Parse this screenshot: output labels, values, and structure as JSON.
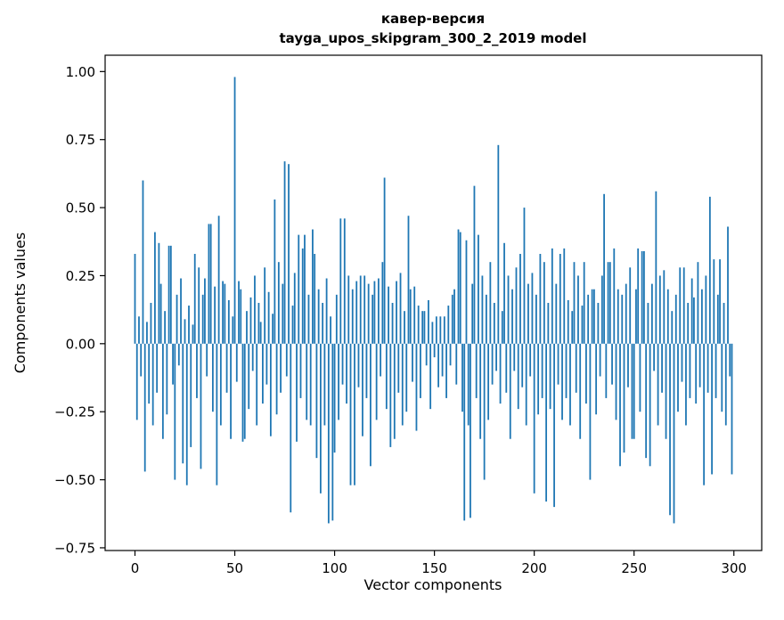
{
  "chart_data": {
    "type": "bar",
    "title_line1": "кавер-версия",
    "title_line2": "tayga_upos_skipgram_300_2_2019 model",
    "xlabel": "Vector components",
    "ylabel": "Components values",
    "bar_color": "#1f77b4",
    "axis_color": "#000000",
    "xlim": [
      -14.95,
      313.95
    ],
    "ylim": [
      -0.76,
      1.06
    ],
    "xticks": [
      0,
      50,
      100,
      150,
      200,
      250,
      300
    ],
    "xtick_labels": [
      "0",
      "50",
      "100",
      "150",
      "200",
      "250",
      "300"
    ],
    "yticks": [
      -0.75,
      -0.5,
      -0.25,
      0,
      0.25,
      0.5,
      0.75,
      1.0
    ],
    "ytick_labels": [
      "−0.75",
      "−0.50",
      "−0.25",
      "0.00",
      "0.25",
      "0.50",
      "0.75",
      "1.00"
    ],
    "legend": "off",
    "grid": "off",
    "values": [
      0.33,
      -0.28,
      0.1,
      -0.12,
      0.6,
      -0.47,
      0.08,
      -0.22,
      0.15,
      -0.3,
      0.41,
      -0.18,
      0.37,
      0.22,
      -0.35,
      0.12,
      -0.26,
      0.36,
      0.36,
      -0.15,
      -0.5,
      0.18,
      -0.08,
      0.24,
      -0.44,
      0.09,
      -0.52,
      0.14,
      -0.38,
      0.07,
      0.33,
      -0.2,
      0.28,
      -0.46,
      0.18,
      0.24,
      -0.12,
      0.44,
      0.44,
      -0.25,
      0.21,
      -0.52,
      0.47,
      -0.3,
      0.23,
      0.22,
      -0.18,
      0.16,
      -0.35,
      0.1,
      0.98,
      -0.14,
      0.23,
      0.2,
      -0.36,
      -0.35,
      0.12,
      -0.24,
      0.17,
      -0.1,
      0.25,
      -0.3,
      0.15,
      0.08,
      -0.22,
      0.28,
      -0.15,
      0.19,
      -0.34,
      0.11,
      0.53,
      -0.26,
      0.3,
      -0.18,
      0.22,
      0.67,
      -0.12,
      0.66,
      -0.62,
      0.14,
      0.26,
      -0.36,
      0.4,
      -0.2,
      0.35,
      0.4,
      -0.28,
      0.18,
      -0.3,
      0.42,
      0.33,
      -0.42,
      0.2,
      -0.55,
      0.15,
      -0.3,
      0.24,
      -0.66,
      0.1,
      -0.65,
      -0.4,
      0.18,
      -0.28,
      0.46,
      -0.15,
      0.46,
      -0.22,
      0.25,
      -0.52,
      0.2,
      -0.52,
      0.23,
      -0.16,
      0.25,
      -0.34,
      0.25,
      -0.2,
      0.22,
      -0.45,
      0.18,
      0.23,
      -0.28,
      0.24,
      -0.12,
      0.3,
      0.61,
      -0.24,
      0.21,
      -0.38,
      0.15,
      -0.35,
      0.23,
      -0.18,
      0.26,
      -0.3,
      0.12,
      -0.25,
      0.47,
      0.2,
      -0.14,
      0.21,
      -0.32,
      0.14,
      -0.2,
      0.12,
      0.12,
      -0.08,
      0.16,
      -0.24,
      0.08,
      -0.05,
      0.1,
      -0.16,
      0.1,
      -0.12,
      0.1,
      -0.2,
      0.14,
      -0.08,
      0.18,
      0.2,
      -0.15,
      0.42,
      0.41,
      -0.25,
      -0.65,
      0.38,
      -0.3,
      -0.64,
      0.22,
      0.58,
      -0.2,
      0.4,
      -0.35,
      0.25,
      -0.5,
      0.18,
      -0.28,
      0.3,
      -0.15,
      0.15,
      -0.1,
      0.73,
      -0.22,
      0.12,
      0.37,
      -0.18,
      0.25,
      -0.35,
      0.2,
      -0.1,
      0.28,
      -0.24,
      0.33,
      -0.16,
      0.5,
      -0.3,
      0.22,
      -0.12,
      0.26,
      -0.55,
      0.18,
      -0.26,
      0.33,
      -0.2,
      0.3,
      -0.58,
      0.15,
      -0.24,
      0.35,
      -0.6,
      0.22,
      -0.15,
      0.33,
      -0.28,
      0.35,
      -0.2,
      0.16,
      -0.3,
      0.12,
      0.3,
      -0.18,
      0.25,
      -0.35,
      0.14,
      0.3,
      -0.22,
      0.18,
      -0.5,
      0.2,
      0.2,
      -0.26,
      0.15,
      -0.12,
      0.25,
      0.55,
      -0.2,
      0.3,
      0.3,
      -0.15,
      0.35,
      -0.28,
      0.2,
      -0.45,
      0.18,
      -0.4,
      0.22,
      -0.16,
      0.28,
      -0.35,
      -0.35,
      0.2,
      0.35,
      -0.25,
      0.34,
      0.34,
      -0.42,
      0.15,
      -0.45,
      0.22,
      -0.1,
      0.56,
      -0.3,
      0.25,
      -0.18,
      0.27,
      -0.35,
      0.2,
      -0.63,
      0.12,
      -0.66,
      0.18,
      -0.25,
      0.28,
      -0.14,
      0.28,
      -0.3,
      0.15,
      -0.2,
      0.24,
      0.17,
      -0.22,
      0.3,
      -0.16,
      0.2,
      -0.52,
      0.25,
      -0.18,
      0.54,
      -0.48,
      0.31,
      -0.2,
      0.18,
      0.31,
      -0.25,
      0.15,
      -0.3,
      0.43,
      -0.12,
      -0.48
    ]
  }
}
